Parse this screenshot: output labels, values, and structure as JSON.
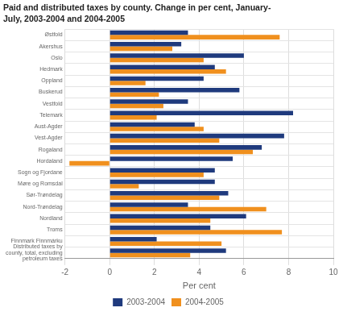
{
  "chart_data": {
    "type": "bar",
    "orientation": "horizontal",
    "title": "Paid and distributed taxes by county. Change in per cent, January-\nJuly, 2003-2004 and 2004-2005",
    "categories": [
      "Østfold",
      "Akershus",
      "Oslo",
      "Hedmark",
      "Oppland",
      "Buskerud",
      "Vestfold",
      "Telemark",
      "Aust-Agder",
      "Vest-Agder",
      "Rogaland",
      "Hordaland",
      "Sogn og Fjordane",
      "Møre og Romsdal",
      "Sør-Trøndelag",
      "Nord-Trøndelag",
      "Nordland",
      "Troms",
      "Finnmark Finnmárku",
      "Distributed taxes by\ncounty, total, excluding\npetroleum taxes"
    ],
    "series": [
      {
        "name": "2003-2004",
        "color": "#1f3a7d",
        "values": [
          3.5,
          3.2,
          6.0,
          4.7,
          4.2,
          5.8,
          3.5,
          8.2,
          3.8,
          7.8,
          6.8,
          5.5,
          4.7,
          4.7,
          5.3,
          3.5,
          6.1,
          4.5,
          2.1,
          5.2
        ]
      },
      {
        "name": "2004-2005",
        "color": "#f0901e",
        "values": [
          7.6,
          2.8,
          4.2,
          5.2,
          1.6,
          2.2,
          2.4,
          2.1,
          4.2,
          4.9,
          6.4,
          -1.8,
          4.2,
          1.3,
          4.9,
          7.0,
          4.5,
          7.7,
          5.0,
          3.6
        ]
      }
    ],
    "xlabel": "Per cent",
    "xlim": [
      -2,
      10
    ],
    "xticks": [
      -2,
      0,
      2,
      4,
      6,
      8,
      10
    ],
    "grid": true,
    "legend": "bottom"
  }
}
